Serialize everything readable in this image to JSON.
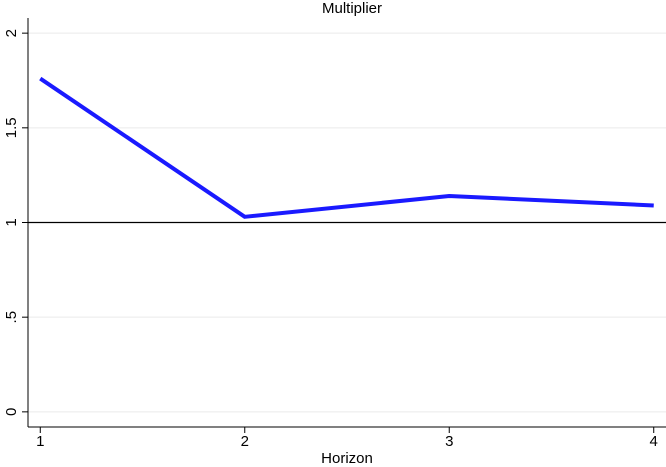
{
  "chart_data": {
    "type": "line",
    "title": "Multiplier",
    "x_label": "Horizon",
    "x": [
      1,
      2,
      3,
      4
    ],
    "series": [
      {
        "name": "Multiplier",
        "color": "#1a1aff",
        "values": [
          1.76,
          1.03,
          1.14,
          1.09
        ]
      }
    ],
    "xlim": [
      0.94,
      4.06
    ],
    "xticks": [
      1,
      2,
      3,
      4
    ],
    "ylim": [
      -0.08,
      2.08
    ],
    "yticks": [
      0,
      {
        "value": 0.5,
        "label": ".5"
      },
      1,
      1.5,
      2
    ],
    "grid": true,
    "reference_line": 1
  }
}
